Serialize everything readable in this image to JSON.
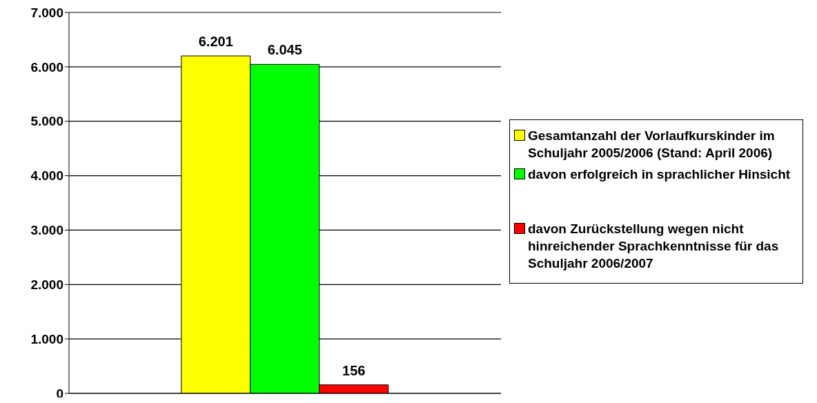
{
  "chart_data": {
    "type": "bar",
    "categories": [
      null
    ],
    "series": [
      {
        "name": "Gesamtanzahl der Vorlaufkurskinder im Schuljahr 2005/2006 (Stand: April 2006)",
        "color": "#ffff00",
        "values": [
          6201
        ],
        "value_labels": [
          "6.201"
        ]
      },
      {
        "name": "davon erfolgreich in sprachlicher Hinsicht",
        "color": "#00ff00",
        "values": [
          6045
        ],
        "value_labels": [
          "6.045"
        ]
      },
      {
        "name": "davon Zurückstellung wegen nicht hinreichender Sprachkenntnisse für das Schuljahr 2006/2007",
        "color": "#ff0000",
        "values": [
          156
        ],
        "value_labels": [
          "156"
        ]
      }
    ],
    "ylim": [
      0,
      7000
    ],
    "yticks": [
      {
        "value": 0,
        "label": "0"
      },
      {
        "value": 1000,
        "label": "1.000"
      },
      {
        "value": 2000,
        "label": "2.000"
      },
      {
        "value": 3000,
        "label": "3.000"
      },
      {
        "value": 4000,
        "label": "4.000"
      },
      {
        "value": 5000,
        "label": "5.000"
      },
      {
        "value": 6000,
        "label": "6.000"
      },
      {
        "value": 7000,
        "label": "7.000"
      }
    ],
    "grid": "y",
    "legend": "right",
    "tick_labels": "y"
  }
}
